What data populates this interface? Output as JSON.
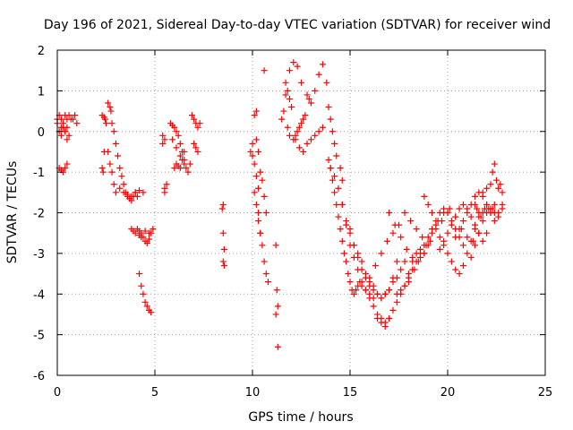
{
  "chart_data": {
    "type": "scatter",
    "title": "Day 196 of 2021, Sidereal Day-to-day VTEC variation (SDTVAR) for receiver wind",
    "xlabel": "GPS time / hours",
    "ylabel": "SDTVAR / TECUs",
    "xlim": [
      0,
      25
    ],
    "ylim": [
      -6,
      2
    ],
    "xticks": [
      0,
      5,
      10,
      15,
      20,
      25
    ],
    "yticks": [
      -6,
      -5,
      -4,
      -3,
      -2,
      -1,
      0,
      1,
      2
    ],
    "xtick_labels": [
      "0",
      "5",
      "10",
      "15",
      "20",
      "25"
    ],
    "ytick_labels": [
      "-6",
      "-5",
      "-4",
      "-3",
      "-2",
      "-1",
      "0",
      "1",
      "2"
    ],
    "grid": true,
    "marker": "plus",
    "color": "#ff0000",
    "series": [
      {
        "name": "SDTVAR",
        "x": [
          0.0,
          0.1,
          0.2,
          0.3,
          0.4,
          0.5,
          0.6,
          0.7,
          0.8,
          0.9,
          1.0,
          0.1,
          0.2,
          0.3,
          0.4,
          0.5,
          0.6,
          0.1,
          0.2,
          0.3,
          0.4,
          0.5,
          0.0,
          0.2,
          0.4,
          0.5,
          2.3,
          2.4,
          2.45,
          2.5,
          2.3,
          2.35,
          2.4,
          2.6,
          2.7,
          2.75,
          2.8,
          2.9,
          3.0,
          3.1,
          3.2,
          3.3,
          3.4,
          3.5,
          3.6,
          3.7,
          3.8,
          3.9,
          4.0,
          4.1,
          2.6,
          2.7,
          2.8,
          2.9,
          3.0,
          3.2,
          3.4,
          3.6,
          3.8,
          4.0,
          4.2,
          4.4,
          3.8,
          3.9,
          4.0,
          4.1,
          4.2,
          4.3,
          4.4,
          4.5,
          4.6,
          4.7,
          4.8,
          4.9,
          4.2,
          4.3,
          4.5,
          4.7,
          4.2,
          4.3,
          4.4,
          4.5,
          4.6,
          4.7,
          4.8,
          5.4,
          5.5,
          5.5,
          5.6,
          5.4,
          5.5,
          5.8,
          5.9,
          6.0,
          6.1,
          6.2,
          6.3,
          6.4,
          6.5,
          6.6,
          6.7,
          6.8,
          5.9,
          6.1,
          6.3,
          6.5,
          6.0,
          6.1,
          6.2,
          6.3,
          6.4,
          6.5,
          6.9,
          7.0,
          7.1,
          7.2,
          7.3,
          7.0,
          7.1,
          7.2,
          8.45,
          8.5,
          8.55,
          8.5,
          8.55,
          8.5,
          9.9,
          10.0,
          10.1,
          10.2,
          10.2,
          10.3,
          10.1,
          10.2,
          10.3,
          10.4,
          10.5,
          10.6,
          10.7,
          10.8,
          10.5,
          10.6,
          10.7,
          10.0,
          10.1,
          10.2,
          10.3,
          10.3,
          10.4,
          10.4,
          10.6,
          11.2,
          11.25,
          11.3,
          11.2,
          11.3,
          11.5,
          11.6,
          11.7,
          11.8,
          11.9,
          12.0,
          11.8,
          11.9,
          12.1,
          12.2,
          12.3,
          12.4,
          12.5,
          12.6,
          12.7,
          11.7,
          11.9,
          12.1,
          12.3,
          12.5,
          12.8,
          12.9,
          13.0,
          13.2,
          13.4,
          13.6,
          12.2,
          12.4,
          12.6,
          12.8,
          13.0,
          13.2,
          13.4,
          13.6,
          13.8,
          13.9,
          14.0,
          14.1,
          14.2,
          14.3,
          14.5,
          14.6,
          13.9,
          14.0,
          14.1,
          14.2,
          14.3,
          14.4,
          14.5,
          14.6,
          14.7,
          14.8,
          14.9,
          15.0,
          15.1,
          15.2,
          15.3,
          15.4,
          15.5,
          15.6,
          15.8,
          16.0,
          16.2,
          14.0,
          14.2,
          14.4,
          14.6,
          14.8,
          15.0,
          15.2,
          15.4,
          15.6,
          15.8,
          16.0,
          16.2,
          16.4,
          16.6,
          16.8,
          17.0,
          17.2,
          17.4,
          17.6,
          17.8,
          14.6,
          14.8,
          15.0,
          15.2,
          15.4,
          15.6,
          15.8,
          16.0,
          16.2,
          16.4,
          16.6,
          16.8,
          17.0,
          15.0,
          15.2,
          15.4,
          15.6,
          15.8,
          16.0,
          16.2,
          16.4,
          16.6,
          16.8,
          17.0,
          17.2,
          17.4,
          16.4,
          16.6,
          16.8,
          17.0,
          17.2,
          17.4,
          17.6,
          17.8,
          18.0,
          18.2,
          18.4,
          18.6,
          18.8,
          16.0,
          16.3,
          16.6,
          16.9,
          17.2,
          17.5,
          17.8,
          18.1,
          18.4,
          18.7,
          19.0,
          17.0,
          17.3,
          17.6,
          17.9,
          18.2,
          18.5,
          18.8,
          19.1,
          19.4,
          19.7,
          20.0,
          17.4,
          17.6,
          17.8,
          18.0,
          18.2,
          18.4,
          18.6,
          18.8,
          19.0,
          19.2,
          19.4,
          19.6,
          19.8,
          20.0,
          20.2,
          20.4,
          20.6,
          20.8,
          18.0,
          18.3,
          18.6,
          18.9,
          19.2,
          19.5,
          19.8,
          20.1,
          20.4,
          20.7,
          21.0,
          21.3,
          21.6,
          18.8,
          19.0,
          19.2,
          19.4,
          19.6,
          19.8,
          20.0,
          20.2,
          20.4,
          20.6,
          20.8,
          21.0,
          21.2,
          21.4,
          21.6,
          19.6,
          19.8,
          20.0,
          20.2,
          20.4,
          20.6,
          20.8,
          21.0,
          21.2,
          21.4,
          21.6,
          21.8,
          22.0,
          20.4,
          20.6,
          20.8,
          21.0,
          21.2,
          21.4,
          21.6,
          21.8,
          22.0,
          22.2,
          22.4,
          22.6,
          22.8,
          21.2,
          21.4,
          21.6,
          21.8,
          22.0,
          22.2,
          22.4,
          22.6,
          22.8,
          21.8,
          22.0,
          22.2,
          22.3,
          22.4,
          22.5,
          22.6,
          22.7,
          22.8,
          21.4,
          21.5,
          21.6,
          21.7,
          21.8,
          21.9,
          22.0,
          22.1,
          22.2,
          22.3,
          22.4
        ],
        "y": [
          0.3,
          0.4,
          0.3,
          0.2,
          0.4,
          0.3,
          0.4,
          0.3,
          0.3,
          0.4,
          0.2,
          0.0,
          -0.1,
          0.1,
          0.0,
          -0.2,
          -0.1,
          -0.9,
          -0.95,
          -1.0,
          -0.9,
          -0.8,
          0.2,
          0.1,
          0.0,
          0.1,
          0.4,
          0.35,
          0.3,
          0.2,
          -0.9,
          -1.0,
          -0.5,
          0.7,
          0.6,
          0.5,
          0.2,
          0.0,
          -0.3,
          -0.6,
          -0.9,
          -1.1,
          -1.3,
          -1.5,
          -1.6,
          -1.65,
          -1.7,
          -1.6,
          -1.5,
          -1.6,
          -0.5,
          -0.8,
          -1.0,
          -1.3,
          -1.5,
          -1.4,
          -1.5,
          -1.55,
          -1.6,
          -1.5,
          -1.45,
          -1.5,
          -2.4,
          -2.45,
          -2.5,
          -2.4,
          -2.45,
          -2.5,
          -2.6,
          -2.7,
          -2.75,
          -2.65,
          -2.5,
          -2.4,
          -2.55,
          -2.6,
          -2.45,
          -2.5,
          -3.5,
          -3.8,
          -4.0,
          -4.2,
          -4.3,
          -4.4,
          -4.45,
          -0.1,
          -0.2,
          -1.5,
          -1.3,
          -0.3,
          -1.4,
          0.2,
          0.15,
          0.1,
          0.0,
          -0.1,
          -0.3,
          -0.5,
          -0.7,
          -0.9,
          -1.0,
          -0.8,
          -0.2,
          -0.4,
          -0.6,
          -0.8,
          -0.9,
          -0.8,
          -0.85,
          -0.9,
          -0.7,
          -0.5,
          0.4,
          0.3,
          0.2,
          0.1,
          0.2,
          -0.3,
          -0.4,
          -0.5,
          -1.9,
          -2.5,
          -2.9,
          -3.2,
          -3.3,
          -1.8,
          -0.5,
          -0.3,
          0.4,
          0.5,
          -0.2,
          -0.5,
          -1.5,
          -1.8,
          -2.2,
          -2.5,
          -2.8,
          -3.2,
          -3.5,
          -3.7,
          -1.2,
          -1.6,
          -2.0,
          -0.6,
          -0.8,
          -1.1,
          -1.4,
          -2.0,
          -1.0,
          -2.5,
          1.5,
          -2.8,
          -3.9,
          -4.3,
          -4.5,
          -5.3,
          0.3,
          0.5,
          0.9,
          1.0,
          0.8,
          0.6,
          0.1,
          -0.1,
          -0.2,
          -0.1,
          0.0,
          0.1,
          0.2,
          0.3,
          0.4,
          1.2,
          1.5,
          1.7,
          1.6,
          1.2,
          0.9,
          0.8,
          0.7,
          1.0,
          1.4,
          1.65,
          -0.2,
          -0.4,
          -0.5,
          -0.3,
          -0.2,
          -0.1,
          0.0,
          0.1,
          1.2,
          0.6,
          0.3,
          0.0,
          -0.3,
          -0.6,
          -0.9,
          -1.2,
          -0.7,
          -0.9,
          -1.2,
          -1.5,
          -1.8,
          -2.1,
          -2.4,
          -2.7,
          -3.0,
          -3.2,
          -3.5,
          -3.7,
          -3.9,
          -4.0,
          -3.9,
          -3.8,
          -3.7,
          -3.8,
          -3.9,
          -4.0,
          -4.1,
          -0.9,
          -1.1,
          -1.4,
          -1.8,
          -2.2,
          -2.5,
          -2.8,
          -3.0,
          -3.2,
          -3.5,
          -3.7,
          -3.8,
          -4.0,
          -4.1,
          -4.0,
          -3.9,
          -3.7,
          -3.6,
          -3.4,
          -3.2,
          -1.8,
          -2.3,
          -2.8,
          -3.1,
          -3.4,
          -3.7,
          -3.9,
          -4.1,
          -4.3,
          -4.5,
          -4.6,
          -4.7,
          -4.6,
          -2.4,
          -2.8,
          -3.1,
          -3.4,
          -3.6,
          -3.8,
          -3.9,
          -4.0,
          -4.1,
          -4.0,
          -3.9,
          -3.6,
          -3.2,
          -4.6,
          -4.7,
          -4.8,
          -4.6,
          -4.4,
          -4.2,
          -4.0,
          -3.8,
          -3.5,
          -3.2,
          -3.0,
          -2.9,
          -3.0,
          -3.6,
          -3.3,
          -3.0,
          -2.7,
          -2.5,
          -2.3,
          -2.0,
          -2.2,
          -2.4,
          -2.6,
          -2.8,
          -2.0,
          -2.3,
          -2.6,
          -2.9,
          -3.1,
          -3.2,
          -3.0,
          -2.7,
          -2.4,
          -2.2,
          -2.0,
          -4.0,
          -3.9,
          -3.8,
          -3.6,
          -3.4,
          -3.2,
          -3.0,
          -2.8,
          -2.6,
          -2.4,
          -2.2,
          -2.0,
          -1.9,
          -2.0,
          -2.2,
          -2.4,
          -2.6,
          -2.8,
          -3.7,
          -3.4,
          -3.1,
          -2.8,
          -2.5,
          -2.2,
          -2.0,
          -1.9,
          -2.1,
          -2.4,
          -2.6,
          -2.7,
          -2.5,
          -1.6,
          -1.8,
          -2.0,
          -2.3,
          -2.6,
          -2.8,
          -3.0,
          -3.2,
          -3.4,
          -3.5,
          -3.3,
          -3.0,
          -2.7,
          -2.4,
          -2.1,
          -2.9,
          -2.7,
          -2.5,
          -2.3,
          -2.1,
          -1.9,
          -1.8,
          -1.9,
          -2.1,
          -2.3,
          -2.5,
          -2.7,
          -2.5,
          -2.6,
          -2.4,
          -2.2,
          -2.0,
          -1.8,
          -1.6,
          -1.5,
          -1.6,
          -1.8,
          -2.0,
          -2.2,
          -2.0,
          -1.8,
          -3.1,
          -2.8,
          -2.5,
          -2.2,
          -2.0,
          -1.9,
          -2.0,
          -2.1,
          -1.9,
          -1.5,
          -1.4,
          -1.3,
          -1.0,
          -0.8,
          -1.2,
          -1.4,
          -1.3,
          -1.5,
          -1.8,
          -1.9,
          -2.0,
          -2.1,
          -2.0,
          -1.9,
          -1.8,
          -1.9,
          -2.0,
          -1.9,
          -1.8
        ]
      }
    ]
  }
}
